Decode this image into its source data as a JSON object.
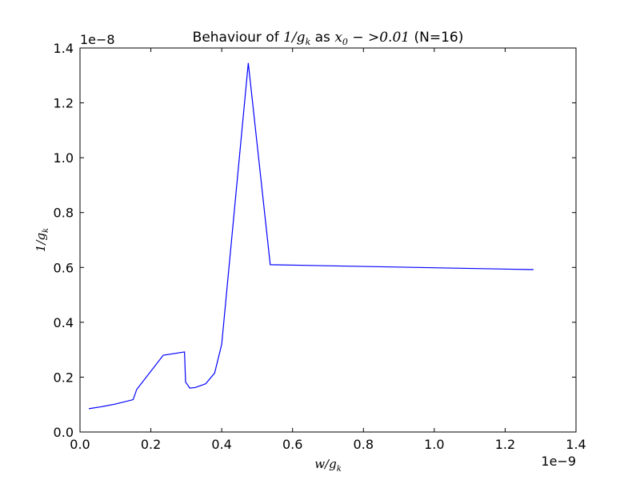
{
  "chart_data": {
    "type": "line",
    "title": {
      "prefix": "Behaviour of ",
      "math1": "1/g",
      "math1_sub": "k",
      "middle": " as ",
      "math2": "x",
      "math2_sub": "0",
      "math2_rest": " − >0.01",
      "suffix": " (N=16)"
    },
    "xlabel": {
      "main": "w/g",
      "sub": "k"
    },
    "ylabel": {
      "main": "1/g",
      "sub": "k"
    },
    "x_offset_label": "1e−9",
    "y_offset_label": "1e−8",
    "xlim": [
      0.0,
      1.4
    ],
    "ylim": [
      0.0,
      1.4
    ],
    "x_ticks": [
      0.0,
      0.2,
      0.4,
      0.6,
      0.8,
      1.0,
      1.2,
      1.4
    ],
    "x_tick_labels": [
      "0.0",
      "0.2",
      "0.4",
      "0.6",
      "0.8",
      "1.0",
      "1.2",
      "1.4"
    ],
    "y_ticks": [
      0.0,
      0.2,
      0.4,
      0.6,
      0.8,
      1.0,
      1.2,
      1.4
    ],
    "y_tick_labels": [
      "0.0",
      "0.2",
      "0.4",
      "0.6",
      "0.8",
      "1.0",
      "1.2",
      "1.4"
    ],
    "grid": false,
    "series": [
      {
        "color": "#0000ff",
        "x": [
          0.025,
          0.06,
          0.1,
          0.15,
          0.16,
          0.235,
          0.295,
          0.298,
          0.31,
          0.325,
          0.355,
          0.38,
          0.4,
          0.475,
          0.537,
          1.28
        ],
        "y": [
          0.085,
          0.092,
          0.102,
          0.118,
          0.155,
          0.28,
          0.292,
          0.182,
          0.16,
          0.162,
          0.176,
          0.215,
          0.32,
          1.345,
          0.61,
          0.592
        ]
      }
    ]
  }
}
